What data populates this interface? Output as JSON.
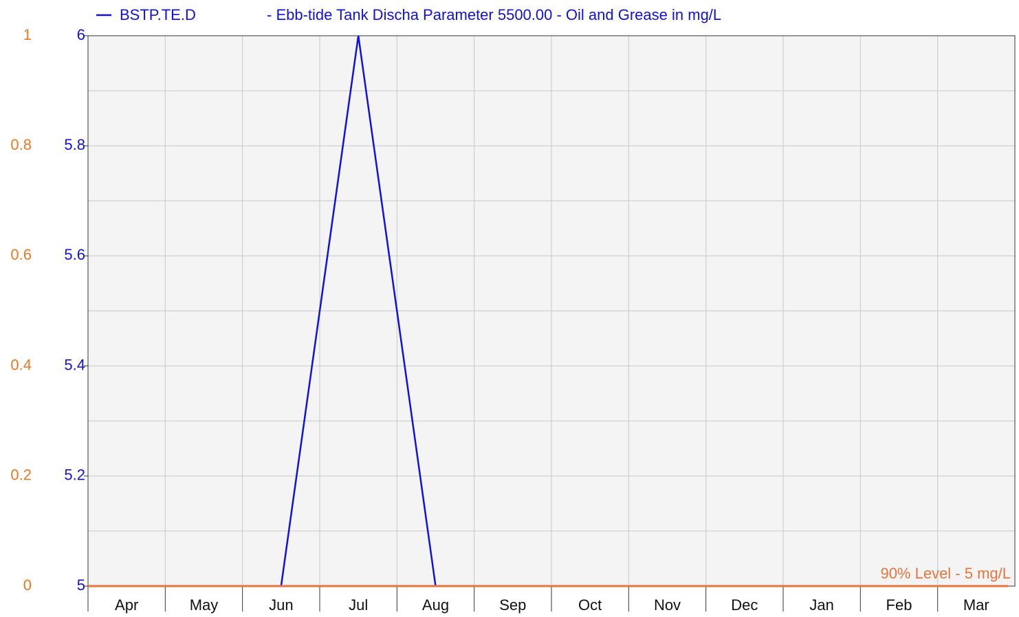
{
  "chart_data": {
    "type": "line",
    "title": "- Ebb-tide Tank Discha Parameter 5500.00 - Oil and Grease in mg/L",
    "categories": [
      "Apr",
      "May",
      "Jun",
      "Jul",
      "Aug",
      "Sep",
      "Oct",
      "Nov",
      "Dec",
      "Jan",
      "Feb",
      "Mar"
    ],
    "series": [
      {
        "name": "BSTP.TE.D",
        "color": "#1010e0",
        "values": [
          5,
          5,
          5,
          6,
          5,
          5,
          5,
          5,
          5,
          5,
          5,
          5
        ]
      }
    ],
    "threshold": {
      "label": "90% Level - 5 mg/L",
      "value": 0,
      "axis": "y2",
      "color": "#e8743b"
    },
    "ylim": [
      5,
      6
    ],
    "yticks": [
      5,
      5.2,
      5.4,
      5.6,
      5.8,
      6
    ],
    "yminorticks": [
      5.1,
      5.3,
      5.5,
      5.7,
      5.9
    ],
    "y2lim": [
      0,
      1
    ],
    "y2ticks": [
      0,
      0.2,
      0.4,
      0.6,
      0.8,
      1
    ],
    "y2color": "#f07820",
    "grid": true
  }
}
